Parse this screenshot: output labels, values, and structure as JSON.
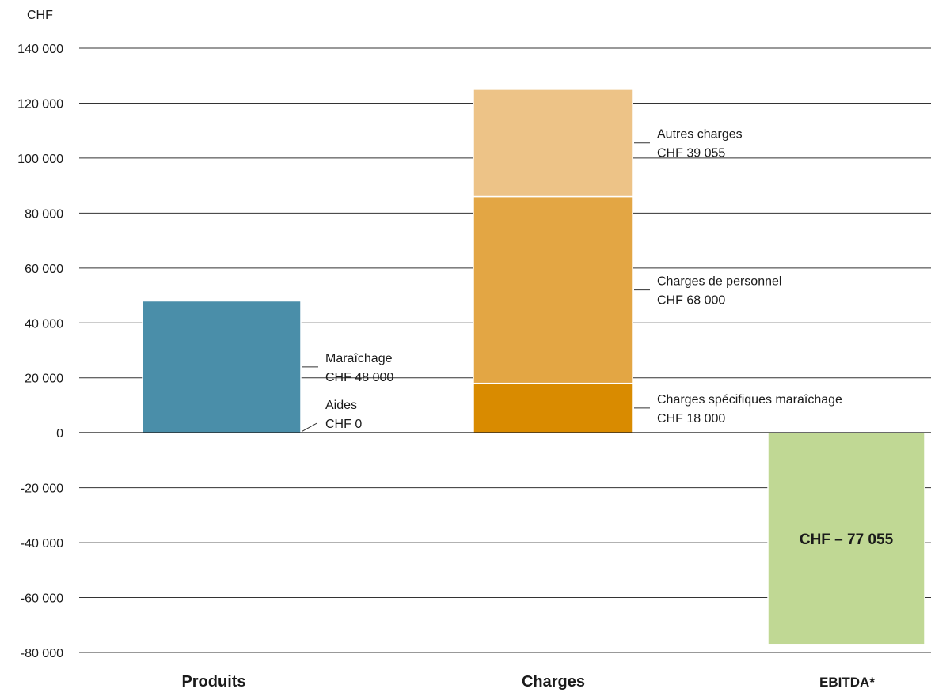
{
  "chart_data": {
    "type": "bar",
    "stacked": true,
    "ylabel": "CHF",
    "ylim": [
      -80000,
      140000
    ],
    "yticks": [
      140000,
      120000,
      100000,
      80000,
      60000,
      40000,
      20000,
      0,
      -20000,
      -40000,
      -60000,
      -80000
    ],
    "ytick_labels": [
      "140 000",
      "120 000",
      "100 000",
      "80 000",
      "60 000",
      "40 000",
      "20 000",
      "0",
      "-20 000",
      "-40 000",
      "-60 000",
      "-80 000"
    ],
    "grid": true,
    "categories": [
      "Produits",
      "Charges",
      "EBITDA*"
    ],
    "series": [
      {
        "name": "Aides",
        "category": "Produits",
        "value": 0,
        "color": "#cfe0ea",
        "label": [
          "Aides",
          "CHF 0"
        ]
      },
      {
        "name": "Maraîchage",
        "category": "Produits",
        "value": 48000,
        "color": "#4a8ea9",
        "label": [
          "Maraîchage",
          "CHF 48 000"
        ]
      },
      {
        "name": "Charges spécifiques maraîchage",
        "category": "Charges",
        "value": 18000,
        "color": "#d98b00",
        "label": [
          "Charges spécifiques maraîchage",
          "CHF 18 000"
        ]
      },
      {
        "name": "Charges de personnel",
        "category": "Charges",
        "value": 68000,
        "color": "#e3a644",
        "label": [
          "Charges de personnel",
          "CHF 68 000"
        ]
      },
      {
        "name": "Autres charges",
        "category": "Charges",
        "value": 39055,
        "color": "#edc387",
        "label": [
          "Autres charges",
          "CHF 39 055"
        ]
      },
      {
        "name": "EBITDA*",
        "category": "EBITDA*",
        "value": -77055,
        "color": "#c0d894",
        "label": [
          "CHF – 77 055"
        ]
      }
    ]
  }
}
